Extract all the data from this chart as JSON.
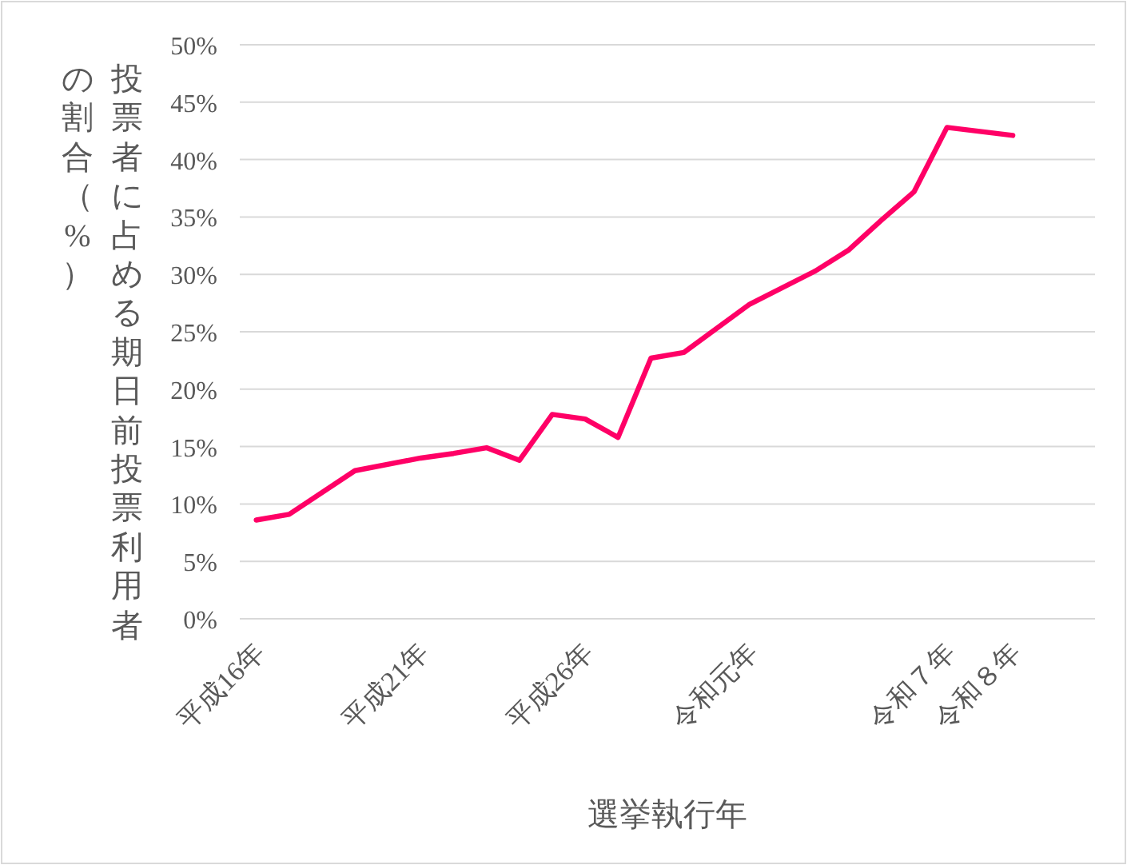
{
  "chart_data": {
    "type": "line",
    "xlabel": "選挙執行年",
    "ylabel": "投票者に占める期日前投票利用者の割合（%）",
    "categories": [
      "平成16年",
      null,
      null,
      null,
      null,
      "平成21年",
      null,
      null,
      null,
      null,
      "平成26年",
      null,
      null,
      null,
      null,
      "令和元年",
      null,
      null,
      null,
      null,
      null,
      "令和７年",
      null,
      "令和８年",
      null,
      null
    ],
    "series": [
      {
        "color": "#ff0066",
        "values": [
          8.6,
          9.1,
          null,
          12.9,
          null,
          14.0,
          14.4,
          14.9,
          13.8,
          17.8,
          17.4,
          15.8,
          22.7,
          23.2,
          null,
          27.4,
          null,
          30.3,
          32.1,
          34.7,
          37.2,
          42.8,
          null,
          42.1,
          null,
          null
        ]
      }
    ],
    "ylim": [
      0,
      50
    ],
    "yticks": [
      {
        "value": 0,
        "label": "0%"
      },
      {
        "value": 5,
        "label": "5%"
      },
      {
        "value": 10,
        "label": "10%"
      },
      {
        "value": 15,
        "label": "15%"
      },
      {
        "value": 20,
        "label": "20%"
      },
      {
        "value": 25,
        "label": "25%"
      },
      {
        "value": 30,
        "label": "30%"
      },
      {
        "value": 35,
        "label": "35%"
      },
      {
        "value": 40,
        "label": "40%"
      },
      {
        "value": 45,
        "label": "45%"
      },
      {
        "value": 50,
        "label": "50%"
      }
    ],
    "grid": "y",
    "marker": "none",
    "line_style": "solid"
  }
}
